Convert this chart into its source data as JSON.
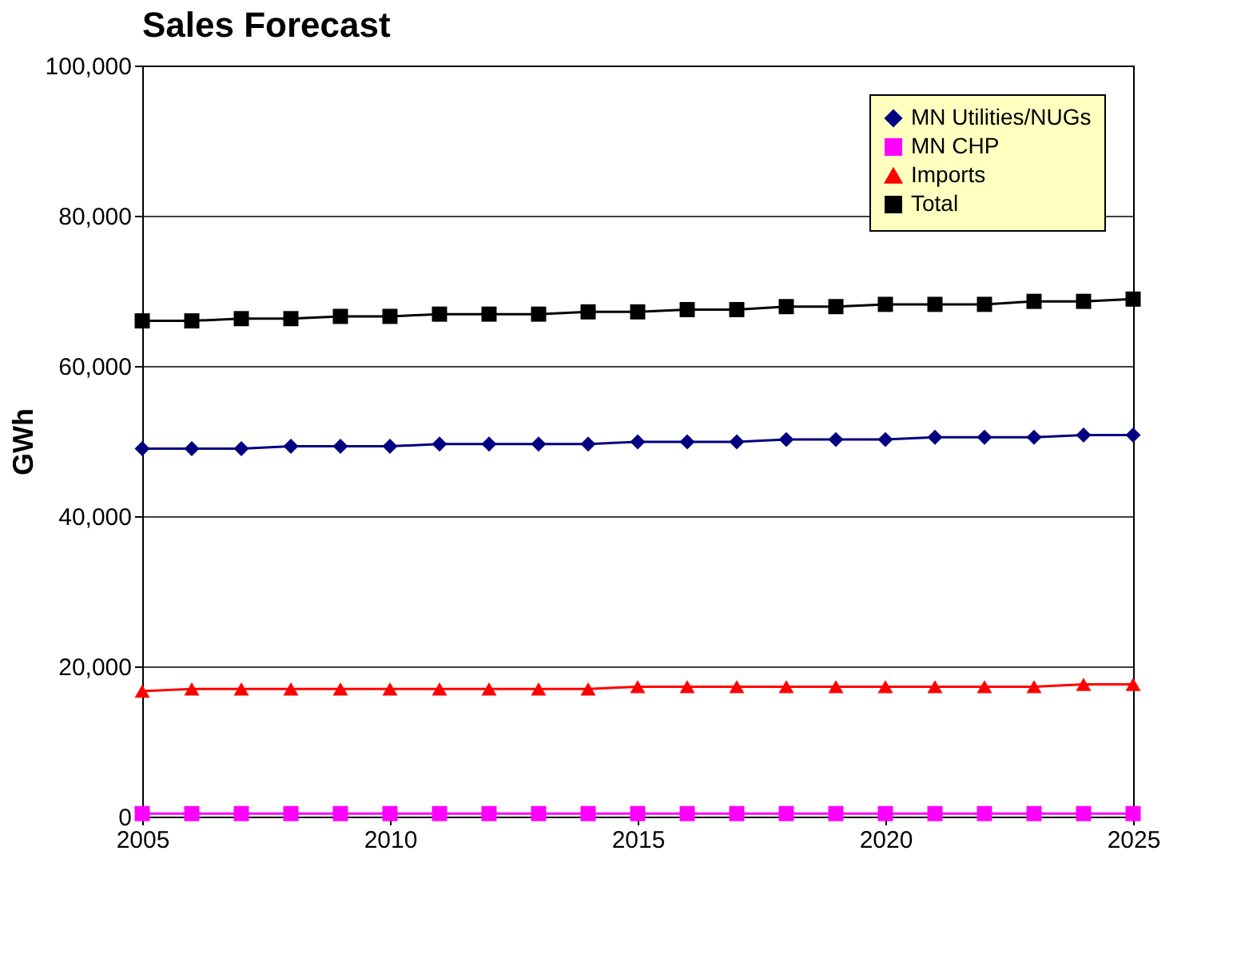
{
  "chart_data": {
    "type": "line",
    "title": "Sales Forecast",
    "ylabel": "GWh",
    "x": [
      2005,
      2006,
      2007,
      2008,
      2009,
      2010,
      2011,
      2012,
      2013,
      2014,
      2015,
      2016,
      2017,
      2018,
      2019,
      2020,
      2021,
      2022,
      2023,
      2024,
      2025
    ],
    "xlim": [
      2005,
      2025
    ],
    "xticks": [
      2005,
      2010,
      2015,
      2020,
      2025
    ],
    "ylim": [
      0,
      100000
    ],
    "yticks": [
      0,
      {
        "value": 20000,
        "label": "20,000"
      },
      {
        "value": 40000,
        "label": "40,000"
      },
      {
        "value": 60000,
        "label": "60,000"
      },
      {
        "value": 80000,
        "label": "80,000"
      },
      {
        "value": 100000,
        "label": "100,000"
      }
    ],
    "grid": "y",
    "legend": "top right",
    "line_style": "solid",
    "series": [
      {
        "name": "MN Utilities/NUGs",
        "color": "#000080",
        "marker": "diamond",
        "values": [
          49000,
          49000,
          49000,
          49300,
          49300,
          49300,
          49600,
          49600,
          49600,
          49600,
          49900,
          49900,
          49900,
          50200,
          50200,
          50200,
          50500,
          50500,
          50500,
          50800,
          50800
        ]
      },
      {
        "name": "MN CHP",
        "color": "#ff00ff",
        "marker": "square",
        "values": [
          400,
          400,
          400,
          400,
          400,
          400,
          400,
          400,
          400,
          400,
          400,
          400,
          400,
          400,
          400,
          400,
          400,
          400,
          400,
          400,
          400
        ]
      },
      {
        "name": "Imports",
        "color": "#ff0000",
        "marker": "triangle",
        "values": [
          16700,
          17000,
          17000,
          17000,
          17000,
          17000,
          17000,
          17000,
          17000,
          17000,
          17300,
          17300,
          17300,
          17300,
          17300,
          17300,
          17300,
          17300,
          17300,
          17600,
          17600
        ]
      },
      {
        "name": "Total",
        "color": "#000000",
        "marker": "square",
        "values": [
          66000,
          66000,
          66300,
          66300,
          66600,
          66600,
          66900,
          66900,
          66900,
          67200,
          67200,
          67500,
          67500,
          67900,
          67900,
          68200,
          68200,
          68200,
          68600,
          68600,
          68900
        ]
      }
    ]
  }
}
